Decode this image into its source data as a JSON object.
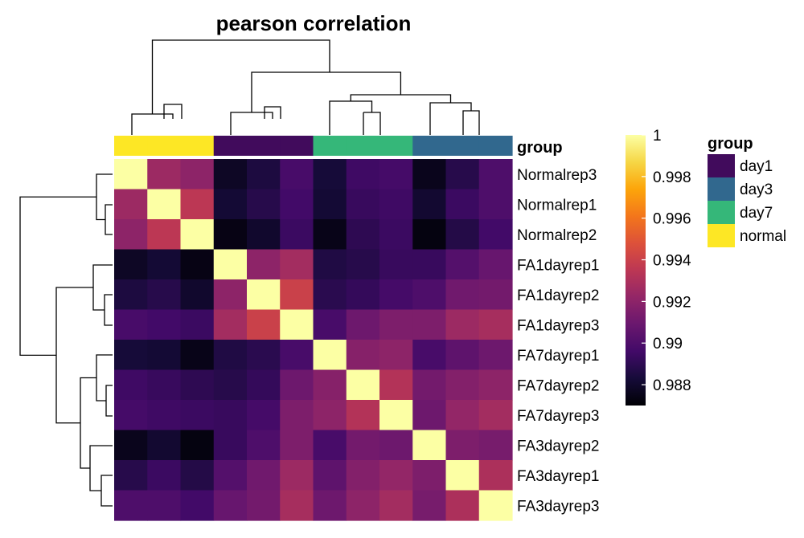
{
  "chart_data": {
    "type": "heatmap",
    "title": "pearson correlation",
    "rows": [
      "Normalrep3",
      "Normalrep1",
      "Normalrep2",
      "FA1dayrep1",
      "FA1dayrep2",
      "FA1dayrep3",
      "FA7dayrep1",
      "FA7dayrep2",
      "FA7dayrep3",
      "FA3dayrep2",
      "FA3dayrep1",
      "FA3dayrep3"
    ],
    "columns": [
      "Normalrep3",
      "Normalrep1",
      "Normalrep2",
      "FA1dayrep1",
      "FA1dayrep2",
      "FA1dayrep3",
      "FA7dayrep1",
      "FA7dayrep2",
      "FA7dayrep3",
      "FA3dayrep2",
      "FA3dayrep1",
      "FA3dayrep3"
    ],
    "values": [
      [
        1.0,
        0.9925,
        0.992,
        0.9878,
        0.9885,
        0.9898,
        0.9883,
        0.9895,
        0.9897,
        0.9876,
        0.9888,
        0.99
      ],
      [
        0.9925,
        1.0,
        0.9935,
        0.9882,
        0.9888,
        0.9896,
        0.9882,
        0.9893,
        0.9895,
        0.9881,
        0.9894,
        0.99
      ],
      [
        0.992,
        0.9935,
        1.0,
        0.9874,
        0.988,
        0.9894,
        0.9875,
        0.989,
        0.9894,
        0.9873,
        0.9887,
        0.9896
      ],
      [
        0.9878,
        0.9882,
        0.9874,
        1.0,
        0.992,
        0.9927,
        0.9886,
        0.9888,
        0.9893,
        0.9893,
        0.9902,
        0.9908
      ],
      [
        0.9885,
        0.9888,
        0.988,
        0.992,
        1.0,
        0.994,
        0.9889,
        0.9892,
        0.9897,
        0.99,
        0.9911,
        0.9912
      ],
      [
        0.9898,
        0.9896,
        0.9894,
        0.9927,
        0.994,
        1.0,
        0.9898,
        0.991,
        0.9915,
        0.9915,
        0.9925,
        0.9928
      ],
      [
        0.9883,
        0.9882,
        0.9875,
        0.9886,
        0.9889,
        0.9898,
        1.0,
        0.9918,
        0.992,
        0.9898,
        0.9905,
        0.991
      ],
      [
        0.9895,
        0.9893,
        0.989,
        0.9888,
        0.9892,
        0.991,
        0.9918,
        1.0,
        0.9932,
        0.9912,
        0.9917,
        0.992
      ],
      [
        0.9897,
        0.9895,
        0.9894,
        0.9893,
        0.9897,
        0.9915,
        0.992,
        0.9932,
        1.0,
        0.991,
        0.9922,
        0.9927
      ],
      [
        0.9876,
        0.9881,
        0.9873,
        0.9893,
        0.99,
        0.9915,
        0.9898,
        0.9912,
        0.991,
        1.0,
        0.9915,
        0.9913
      ],
      [
        0.9888,
        0.9894,
        0.9887,
        0.9902,
        0.9911,
        0.9925,
        0.9905,
        0.9917,
        0.9922,
        0.9915,
        1.0,
        0.993
      ],
      [
        0.99,
        0.99,
        0.9896,
        0.9908,
        0.9912,
        0.9928,
        0.991,
        0.992,
        0.9927,
        0.9913,
        0.993,
        1.0
      ]
    ],
    "column_groups": [
      "normal",
      "normal",
      "normal",
      "day1",
      "day1",
      "day1",
      "day7",
      "day7",
      "day7",
      "day3",
      "day3",
      "day3"
    ],
    "annotation_label": "group",
    "colorbar": {
      "min": 0.987,
      "max": 1.0,
      "ticks": [
        1,
        0.998,
        0.996,
        0.994,
        0.992,
        0.99,
        0.988
      ],
      "tick_labels": [
        "1",
        "0.998",
        "0.996",
        "0.994",
        "0.992",
        "0.99",
        "0.988"
      ]
    },
    "legend": {
      "title": "group",
      "items": [
        {
          "label": "day1",
          "color": "#410b5c"
        },
        {
          "label": "day3",
          "color": "#31688e"
        },
        {
          "label": "day7",
          "color": "#35b779"
        },
        {
          "label": "normal",
          "color": "#fde725"
        }
      ]
    },
    "colormap": "inferno"
  }
}
